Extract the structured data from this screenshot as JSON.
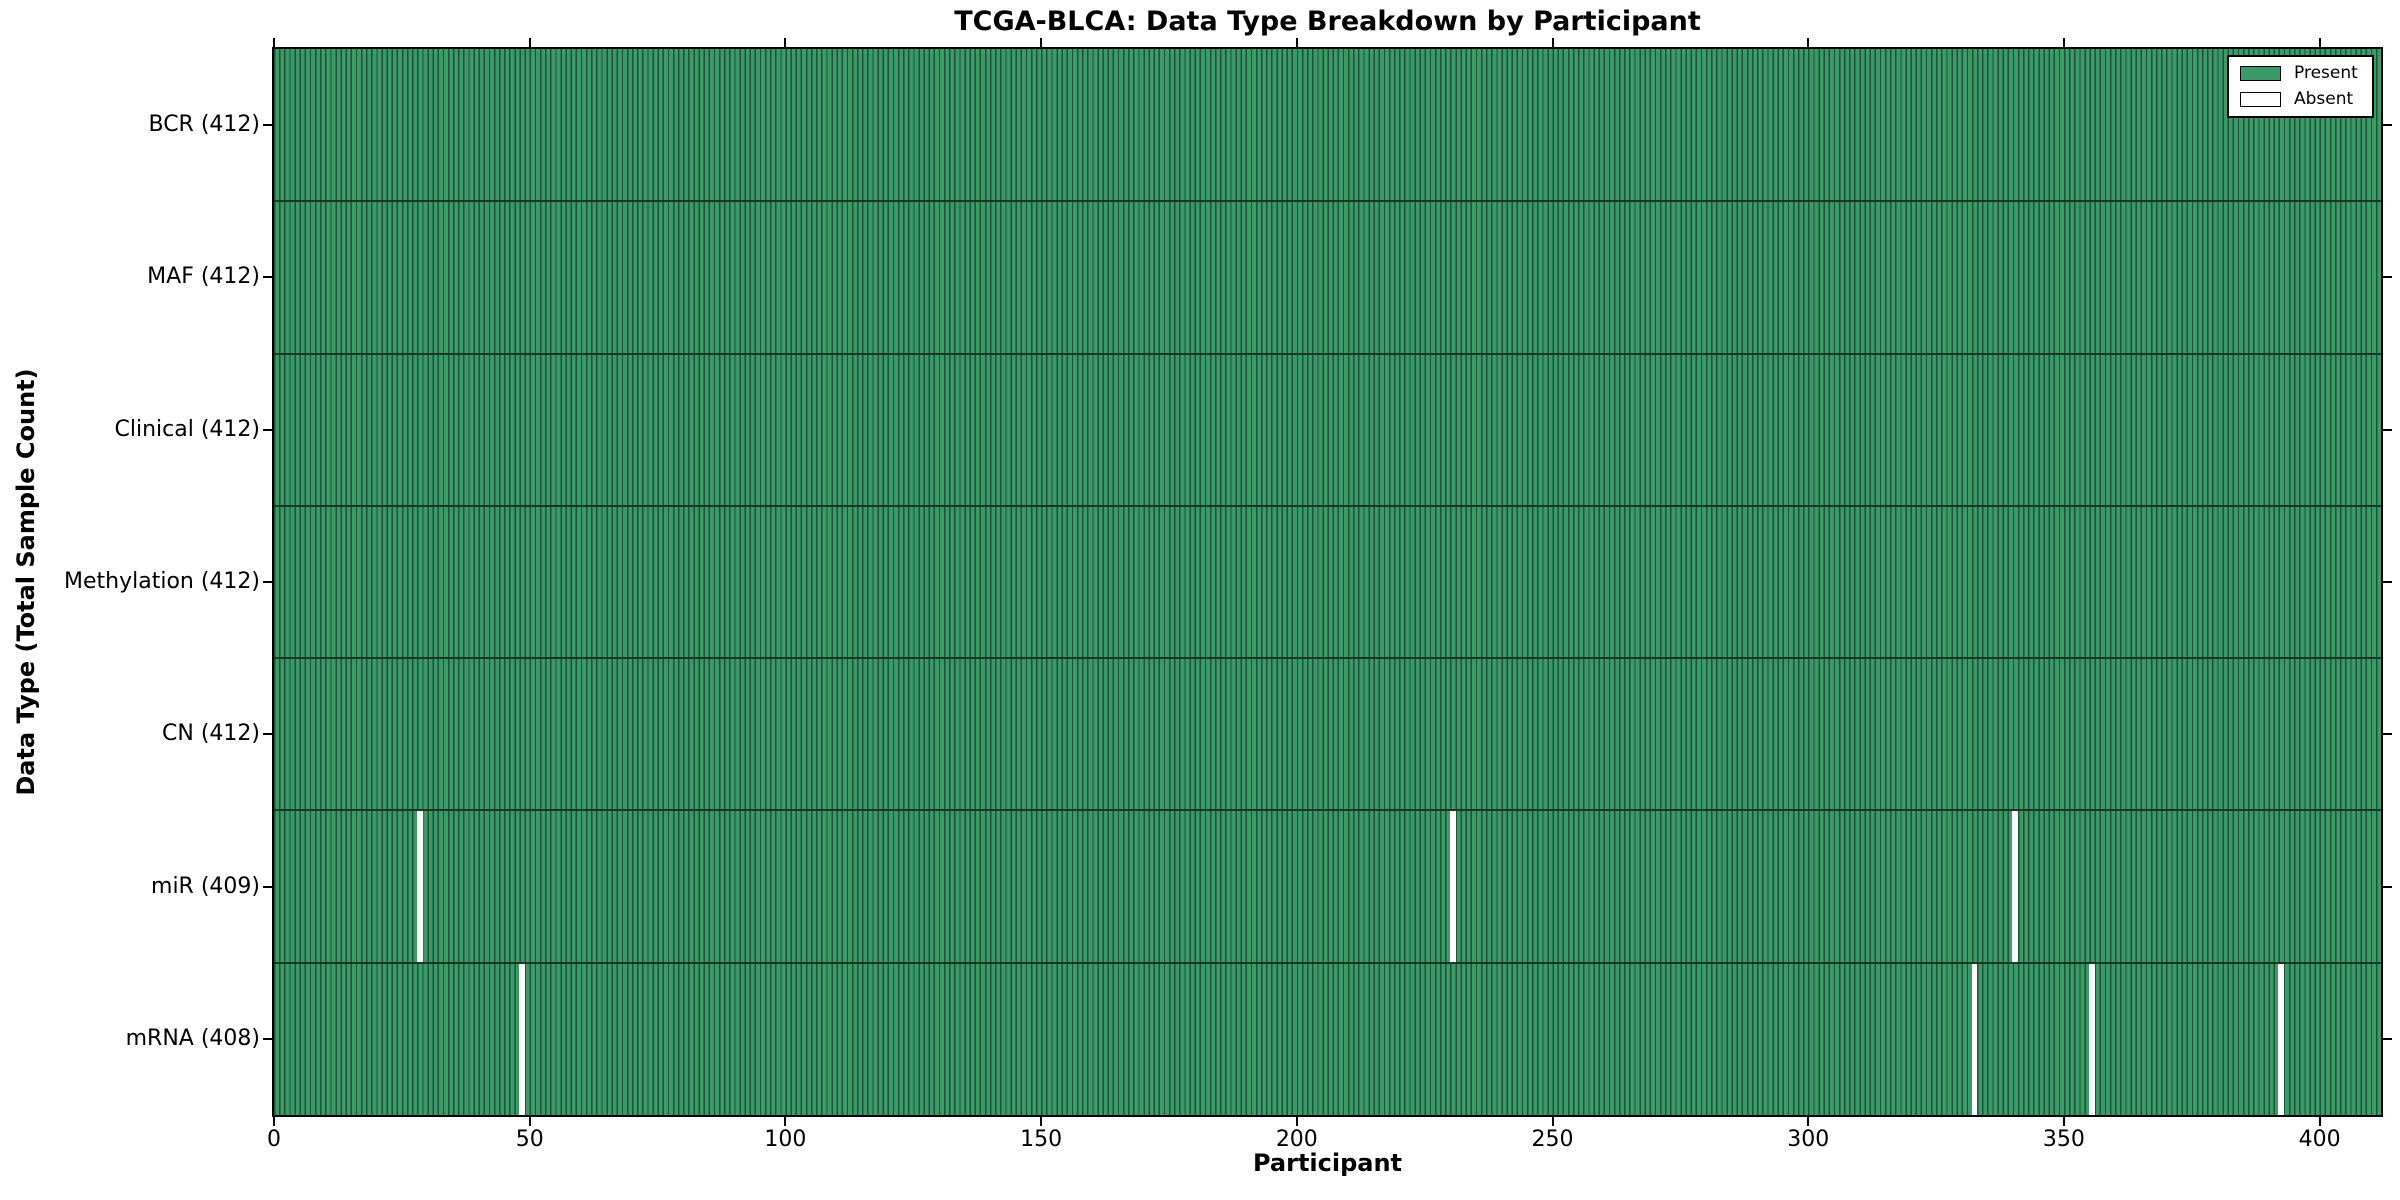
{
  "title": "TCGA-BLCA: Data Type Breakdown by Participant",
  "xlabel": "Participant",
  "ylabel": "Data Type (Total Sample Count)",
  "colors": {
    "present": "#3C9A68",
    "bar_edge": "#1D5437",
    "absent": "#FFFFFF",
    "row_divider": "#1B3826",
    "spine": "#000000",
    "background": "#FFFFFF",
    "text": "#000000"
  },
  "chart_data": {
    "type": "heatmap",
    "title": "TCGA-BLCA: Data Type Breakdown by Participant",
    "xlabel": "Participant",
    "ylabel": "Data Type (Total Sample Count)",
    "n_participants": 412,
    "x_axis": {
      "label": "Participant",
      "min": 0,
      "max": 412,
      "ticks": [
        0,
        50,
        100,
        150,
        200,
        250,
        300,
        350,
        400
      ]
    },
    "legend_entries": [
      {
        "label": "Present",
        "swatch": "present"
      },
      {
        "label": "Absent",
        "swatch": "absent"
      }
    ],
    "legend_position": "upper right",
    "grid": false,
    "rows": [
      {
        "name": "BCR",
        "label": "BCR (412)",
        "present_count": 412,
        "absent_participants": []
      },
      {
        "name": "MAF",
        "label": "MAF (412)",
        "present_count": 412,
        "absent_participants": []
      },
      {
        "name": "Clinical",
        "label": "Clinical (412)",
        "present_count": 412,
        "absent_participants": []
      },
      {
        "name": "Methylation",
        "label": "Methylation (412)",
        "present_count": 412,
        "absent_participants": []
      },
      {
        "name": "CN",
        "label": "CN (412)",
        "present_count": 412,
        "absent_participants": []
      },
      {
        "name": "miR",
        "label": "miR (409)",
        "present_count": 409,
        "absent_participants": [
          28,
          230,
          340
        ]
      },
      {
        "name": "mRNA",
        "label": "mRNA (408)",
        "present_count": 408,
        "absent_participants": [
          48,
          332,
          355,
          392
        ]
      }
    ]
  }
}
